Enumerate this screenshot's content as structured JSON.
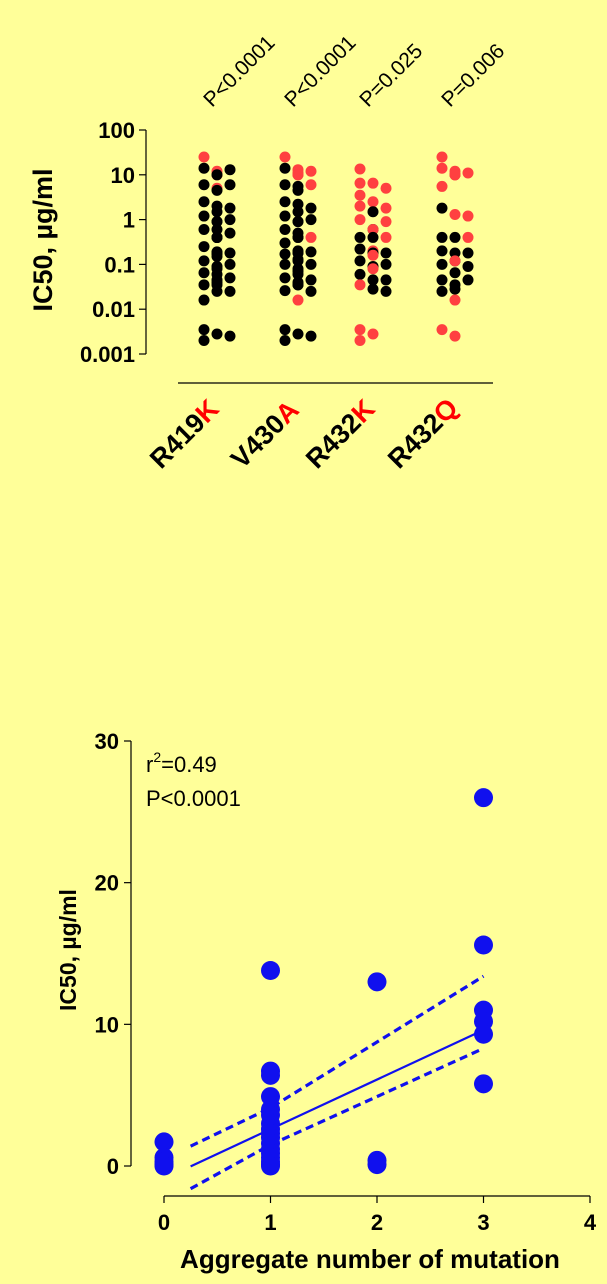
{
  "chart_data": [
    {
      "type": "scatter",
      "title": "",
      "ylabel": "IC50, µg/ml",
      "yscale": "log",
      "ylim": [
        0.001,
        100
      ],
      "yticks": [
        {
          "value": 100,
          "label": "100"
        },
        {
          "value": 10,
          "label": "10"
        },
        {
          "value": 1,
          "label": "1"
        },
        {
          "value": 0.1,
          "label": "0.1"
        },
        {
          "value": 0.01,
          "label": "0.01"
        },
        {
          "value": 0.001,
          "label": "0.001"
        }
      ],
      "colors": {
        "highlight": "#ff0000",
        "black": "#000000",
        "red_point": "#ff4040"
      },
      "groups": [
        {
          "prefix": "R419",
          "suffix": "K",
          "pvalue": "P<0.0001",
          "points": [
            {
              "y": 25,
              "c": "red"
            },
            {
              "y": 14,
              "c": "black"
            },
            {
              "y": 12,
              "c": "red"
            },
            {
              "y": 13,
              "c": "black"
            },
            {
              "y": 10,
              "c": "red"
            },
            {
              "y": 10,
              "c": "red"
            },
            {
              "y": 10,
              "c": "black"
            },
            {
              "y": 6,
              "c": "black"
            },
            {
              "y": 6,
              "c": "black"
            },
            {
              "y": 5,
              "c": "red"
            },
            {
              "y": 4.5,
              "c": "black"
            },
            {
              "y": 2.5,
              "c": "black"
            },
            {
              "y": 2.0,
              "c": "black"
            },
            {
              "y": 1.8,
              "c": "black"
            },
            {
              "y": 1.5,
              "c": "black"
            },
            {
              "y": 1.2,
              "c": "black"
            },
            {
              "y": 1.0,
              "c": "black"
            },
            {
              "y": 0.9,
              "c": "black"
            },
            {
              "y": 0.9,
              "c": "black"
            },
            {
              "y": 0.6,
              "c": "black"
            },
            {
              "y": 0.6,
              "c": "black"
            },
            {
              "y": 0.5,
              "c": "black"
            },
            {
              "y": 0.4,
              "c": "black"
            },
            {
              "y": 0.4,
              "c": "black"
            },
            {
              "y": 0.4,
              "c": "black"
            },
            {
              "y": 0.4,
              "c": "black"
            },
            {
              "y": 0.25,
              "c": "black"
            },
            {
              "y": 0.19,
              "c": "black"
            },
            {
              "y": 0.18,
              "c": "black"
            },
            {
              "y": 0.18,
              "c": "black"
            },
            {
              "y": 0.17,
              "c": "black"
            },
            {
              "y": 0.15,
              "c": "black"
            },
            {
              "y": 0.12,
              "c": "black"
            },
            {
              "y": 0.1,
              "c": "black"
            },
            {
              "y": 0.09,
              "c": "black"
            },
            {
              "y": 0.08,
              "c": "black"
            },
            {
              "y": 0.065,
              "c": "black"
            },
            {
              "y": 0.06,
              "c": "black"
            },
            {
              "y": 0.05,
              "c": "black"
            },
            {
              "y": 0.045,
              "c": "black"
            },
            {
              "y": 0.04,
              "c": "black"
            },
            {
              "y": 0.035,
              "c": "black"
            },
            {
              "y": 0.035,
              "c": "black"
            },
            {
              "y": 0.025,
              "c": "black"
            },
            {
              "y": 0.025,
              "c": "black"
            },
            {
              "y": 0.016,
              "c": "black"
            },
            {
              "y": 0.0035,
              "c": "black"
            },
            {
              "y": 0.0028,
              "c": "black"
            },
            {
              "y": 0.0025,
              "c": "black"
            },
            {
              "y": 0.002,
              "c": "black"
            }
          ]
        },
        {
          "prefix": "V430",
          "suffix": "A",
          "pvalue": "P<0.0001",
          "points": [
            {
              "y": 25,
              "c": "red"
            },
            {
              "y": 14,
              "c": "black"
            },
            {
              "y": 13,
              "c": "red"
            },
            {
              "y": 12,
              "c": "red"
            },
            {
              "y": 11,
              "c": "red"
            },
            {
              "y": 10,
              "c": "red"
            },
            {
              "y": 10,
              "c": "red"
            },
            {
              "y": 6,
              "c": "black"
            },
            {
              "y": 6,
              "c": "red"
            },
            {
              "y": 5.5,
              "c": "black"
            },
            {
              "y": 4.5,
              "c": "black"
            },
            {
              "y": 2.5,
              "c": "black"
            },
            {
              "y": 2.2,
              "c": "black"
            },
            {
              "y": 1.8,
              "c": "black"
            },
            {
              "y": 1.5,
              "c": "black"
            },
            {
              "y": 1.2,
              "c": "black"
            },
            {
              "y": 1.0,
              "c": "black"
            },
            {
              "y": 0.9,
              "c": "black"
            },
            {
              "y": 0.9,
              "c": "black"
            },
            {
              "y": 0.6,
              "c": "black"
            },
            {
              "y": 0.5,
              "c": "black"
            },
            {
              "y": 0.4,
              "c": "red"
            },
            {
              "y": 0.4,
              "c": "black"
            },
            {
              "y": 0.4,
              "c": "black"
            },
            {
              "y": 0.3,
              "c": "black"
            },
            {
              "y": 0.2,
              "c": "black"
            },
            {
              "y": 0.19,
              "c": "black"
            },
            {
              "y": 0.18,
              "c": "black"
            },
            {
              "y": 0.18,
              "c": "black"
            },
            {
              "y": 0.17,
              "c": "black"
            },
            {
              "y": 0.13,
              "c": "black"
            },
            {
              "y": 0.12,
              "c": "black"
            },
            {
              "y": 0.1,
              "c": "black"
            },
            {
              "y": 0.1,
              "c": "black"
            },
            {
              "y": 0.08,
              "c": "black"
            },
            {
              "y": 0.07,
              "c": "black"
            },
            {
              "y": 0.06,
              "c": "black"
            },
            {
              "y": 0.05,
              "c": "black"
            },
            {
              "y": 0.045,
              "c": "black"
            },
            {
              "y": 0.04,
              "c": "black"
            },
            {
              "y": 0.035,
              "c": "black"
            },
            {
              "y": 0.035,
              "c": "black"
            },
            {
              "y": 0.026,
              "c": "black"
            },
            {
              "y": 0.025,
              "c": "black"
            },
            {
              "y": 0.016,
              "c": "red"
            },
            {
              "y": 0.0035,
              "c": "black"
            },
            {
              "y": 0.0028,
              "c": "black"
            },
            {
              "y": 0.0025,
              "c": "black"
            },
            {
              "y": 0.002,
              "c": "black"
            }
          ]
        },
        {
          "prefix": "R432",
          "suffix": "K",
          "pvalue": "P=0.025",
          "points": [
            {
              "y": 13.5,
              "c": "red"
            },
            {
              "y": 6.5,
              "c": "red"
            },
            {
              "y": 6.5,
              "c": "red"
            },
            {
              "y": 5,
              "c": "red"
            },
            {
              "y": 3.5,
              "c": "red"
            },
            {
              "y": 2.5,
              "c": "red"
            },
            {
              "y": 2,
              "c": "red"
            },
            {
              "y": 1.8,
              "c": "red"
            },
            {
              "y": 1.5,
              "c": "black"
            },
            {
              "y": 1,
              "c": "red"
            },
            {
              "y": 0.9,
              "c": "red"
            },
            {
              "y": 0.6,
              "c": "black"
            },
            {
              "y": 0.6,
              "c": "red"
            },
            {
              "y": 0.4,
              "c": "black"
            },
            {
              "y": 0.4,
              "c": "red"
            },
            {
              "y": 0.4,
              "c": "black"
            },
            {
              "y": 0.22,
              "c": "black"
            },
            {
              "y": 0.2,
              "c": "red"
            },
            {
              "y": 0.18,
              "c": "black"
            },
            {
              "y": 0.18,
              "c": "black"
            },
            {
              "y": 0.16,
              "c": "red"
            },
            {
              "y": 0.12,
              "c": "black"
            },
            {
              "y": 0.1,
              "c": "black"
            },
            {
              "y": 0.09,
              "c": "black"
            },
            {
              "y": 0.08,
              "c": "red"
            },
            {
              "y": 0.06,
              "c": "black"
            },
            {
              "y": 0.045,
              "c": "black"
            },
            {
              "y": 0.045,
              "c": "black"
            },
            {
              "y": 0.035,
              "c": "red"
            },
            {
              "y": 0.028,
              "c": "black"
            },
            {
              "y": 0.025,
              "c": "black"
            },
            {
              "y": 0.0035,
              "c": "red"
            },
            {
              "y": 0.0028,
              "c": "red"
            },
            {
              "y": 0.002,
              "c": "red"
            }
          ]
        },
        {
          "prefix": "R432",
          "suffix": "Q",
          "pvalue": "P=0.006",
          "points": [
            {
              "y": 25,
              "c": "red"
            },
            {
              "y": 14,
              "c": "red"
            },
            {
              "y": 12,
              "c": "red"
            },
            {
              "y": 11,
              "c": "red"
            },
            {
              "y": 10,
              "c": "red"
            },
            {
              "y": 10,
              "c": "red"
            },
            {
              "y": 10,
              "c": "red"
            },
            {
              "y": 5.5,
              "c": "red"
            },
            {
              "y": 1.8,
              "c": "black"
            },
            {
              "y": 1.3,
              "c": "red"
            },
            {
              "y": 1.2,
              "c": "red"
            },
            {
              "y": 0.4,
              "c": "black"
            },
            {
              "y": 0.4,
              "c": "black"
            },
            {
              "y": 0.4,
              "c": "red"
            },
            {
              "y": 0.2,
              "c": "black"
            },
            {
              "y": 0.18,
              "c": "black"
            },
            {
              "y": 0.18,
              "c": "black"
            },
            {
              "y": 0.12,
              "c": "black"
            },
            {
              "y": 0.12,
              "c": "red"
            },
            {
              "y": 0.1,
              "c": "black"
            },
            {
              "y": 0.09,
              "c": "black"
            },
            {
              "y": 0.065,
              "c": "black"
            },
            {
              "y": 0.045,
              "c": "black"
            },
            {
              "y": 0.045,
              "c": "black"
            },
            {
              "y": 0.035,
              "c": "black"
            },
            {
              "y": 0.028,
              "c": "black"
            },
            {
              "y": 0.025,
              "c": "black"
            },
            {
              "y": 0.016,
              "c": "red"
            },
            {
              "y": 0.0035,
              "c": "red"
            },
            {
              "y": 0.0025,
              "c": "red"
            }
          ]
        }
      ]
    },
    {
      "type": "scatter",
      "title": "",
      "xlabel": "Aggregate number of mutation",
      "ylabel": "IC50, µg/ml",
      "xlim": [
        0,
        4
      ],
      "ylim": [
        0,
        30
      ],
      "xticks": [
        "0",
        "1",
        "2",
        "3",
        "4"
      ],
      "yticks": [
        "0",
        "10",
        "20",
        "30"
      ],
      "annotation_r2_prefix": "r",
      "annotation_r2_sup": "2",
      "annotation_r2_value": "=0.49",
      "annotation_p": "P<0.0001",
      "color": "#1010ee",
      "points": [
        {
          "x": 0,
          "y": 1.7
        },
        {
          "x": 0,
          "y": 0.6
        },
        {
          "x": 0,
          "y": 0.3
        },
        {
          "x": 0,
          "y": 0.1
        },
        {
          "x": 0,
          "y": 0.0
        },
        {
          "x": 1,
          "y": 13.8
        },
        {
          "x": 1,
          "y": 6.7
        },
        {
          "x": 1,
          "y": 6.4
        },
        {
          "x": 1,
          "y": 4.9
        },
        {
          "x": 1,
          "y": 4.0
        },
        {
          "x": 1,
          "y": 3.6
        },
        {
          "x": 1,
          "y": 3.0
        },
        {
          "x": 1,
          "y": 2.6
        },
        {
          "x": 1,
          "y": 2.3
        },
        {
          "x": 1,
          "y": 2.0
        },
        {
          "x": 1,
          "y": 1.6
        },
        {
          "x": 1,
          "y": 1.2
        },
        {
          "x": 1,
          "y": 0.9
        },
        {
          "x": 1,
          "y": 0.6
        },
        {
          "x": 1,
          "y": 0.3
        },
        {
          "x": 1,
          "y": 0.1
        },
        {
          "x": 1,
          "y": 0.0
        },
        {
          "x": 2,
          "y": 13.0
        },
        {
          "x": 2,
          "y": 0.4
        },
        {
          "x": 2,
          "y": 0.1
        },
        {
          "x": 3,
          "y": 26.0
        },
        {
          "x": 3,
          "y": 15.6
        },
        {
          "x": 3,
          "y": 11.0
        },
        {
          "x": 3,
          "y": 10.2
        },
        {
          "x": 3,
          "y": 9.3
        },
        {
          "x": 3,
          "y": 5.8
        }
      ],
      "fit": {
        "slope": 3.5,
        "intercept": -0.9,
        "x_range": [
          0.25,
          3
        ]
      },
      "ci_lower": [
        {
          "x": 0.25,
          "y": -1.6
        },
        {
          "x": 1.0,
          "y": 1.5
        },
        {
          "x": 3.0,
          "y": 8.3
        }
      ],
      "ci_upper": [
        {
          "x": 0.25,
          "y": 1.4
        },
        {
          "x": 1.0,
          "y": 4.1
        },
        {
          "x": 3.0,
          "y": 13.4
        }
      ]
    }
  ]
}
